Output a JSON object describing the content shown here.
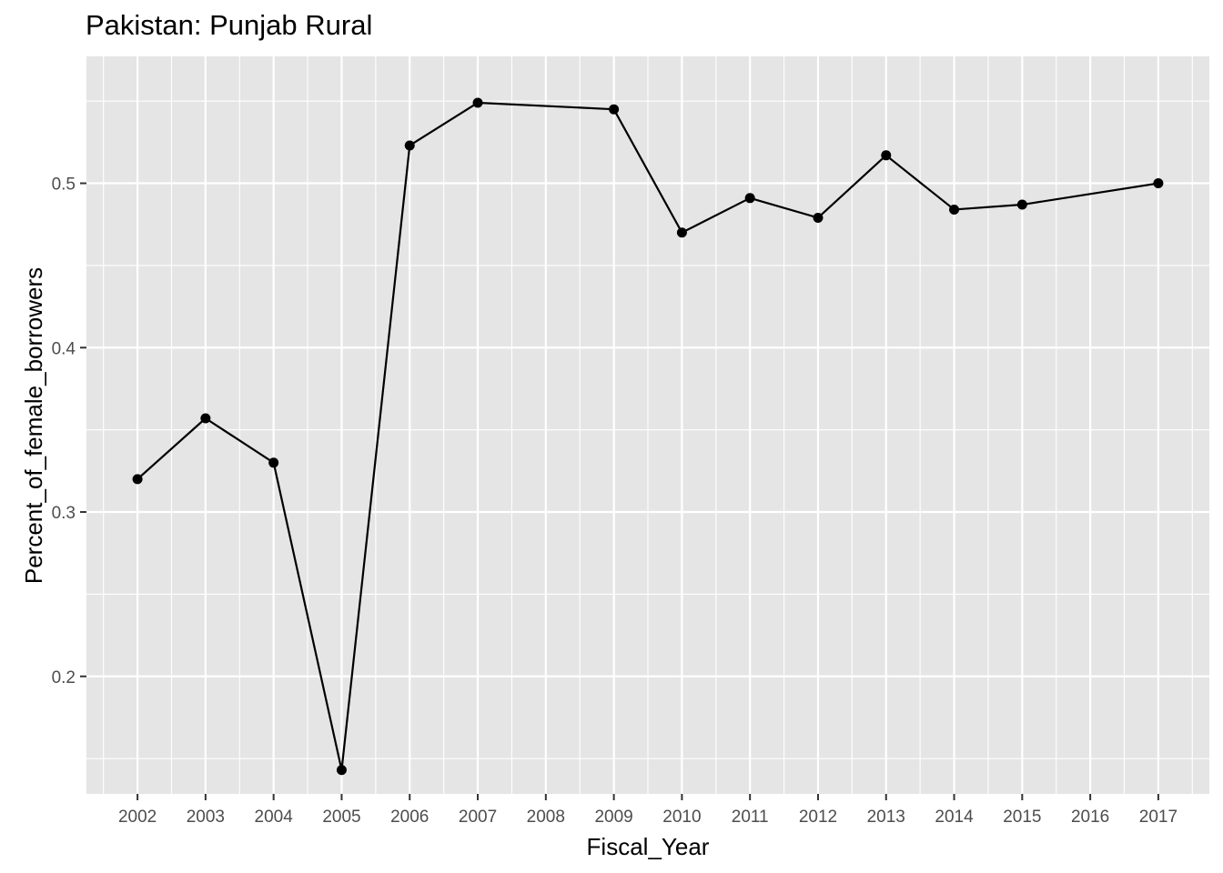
{
  "chart_data": {
    "type": "line",
    "title": "Pakistan:  Punjab Rural",
    "xlabel": "Fiscal_Year",
    "ylabel": "Percent_of_female_borrowers",
    "x_ticks": [
      "2002",
      "2003",
      "2004",
      "2005",
      "2006",
      "2007",
      "2008",
      "2009",
      "2010",
      "2011",
      "2012",
      "2013",
      "2014",
      "2015",
      "2016",
      "2017"
    ],
    "y_ticks": [
      "0.2",
      "0.3",
      "0.4",
      "0.5"
    ],
    "xlim": [
      2001.25,
      2017.75
    ],
    "ylim": [
      0.1285,
      0.5772
    ],
    "grid": true,
    "legend": "none",
    "colors": {
      "panel": "#e5e5e5",
      "grid": "#ffffff",
      "line": "#000000",
      "tick_text": "#4d4d4d"
    },
    "series": [
      {
        "x": [
          2002,
          2003,
          2004,
          2005,
          2006,
          2007,
          2009,
          2010,
          2011,
          2012,
          2013,
          2014,
          2015,
          2017
        ],
        "y": [
          0.32,
          0.357,
          0.33,
          0.143,
          0.523,
          0.549,
          0.545,
          0.47,
          0.491,
          0.479,
          0.517,
          0.484,
          0.487,
          0.5
        ]
      }
    ]
  }
}
